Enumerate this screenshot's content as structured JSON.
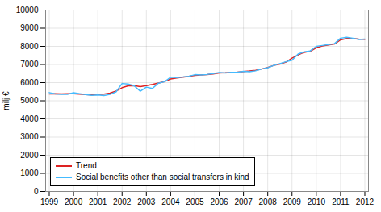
{
  "chart_data": {
    "type": "line",
    "title": "",
    "ylabel": "milj €",
    "xlim": [
      1998.85,
      2012.15
    ],
    "xticks": [
      1999,
      2000,
      2001,
      2002,
      2003,
      2004,
      2005,
      2006,
      2007,
      2008,
      2009,
      2010,
      2011,
      2012
    ],
    "ylim": [
      0,
      10000
    ],
    "yticks": [
      0,
      1000,
      2000,
      3000,
      4000,
      5000,
      6000,
      7000,
      8000,
      9000,
      10000
    ],
    "grid": true,
    "legend": "lower left",
    "x": [
      1999.0,
      1999.25,
      1999.5,
      1999.75,
      2000.0,
      2000.25,
      2000.5,
      2000.75,
      2001.0,
      2001.25,
      2001.5,
      2001.75,
      2002.0,
      2002.25,
      2002.5,
      2002.75,
      2003.0,
      2003.25,
      2003.5,
      2003.75,
      2004.0,
      2004.25,
      2004.5,
      2004.75,
      2005.0,
      2005.25,
      2005.5,
      2005.75,
      2006.0,
      2006.25,
      2006.5,
      2006.75,
      2007.0,
      2007.25,
      2007.5,
      2007.75,
      2008.0,
      2008.25,
      2008.5,
      2008.75,
      2009.0,
      2009.25,
      2009.5,
      2009.75,
      2010.0,
      2010.25,
      2010.5,
      2010.75,
      2011.0,
      2011.25,
      2011.5,
      2011.75,
      2012.0
    ],
    "series": [
      {
        "name": "Trend",
        "color": "#dd2222",
        "values": [
          5380,
          5390,
          5380,
          5390,
          5390,
          5370,
          5340,
          5320,
          5340,
          5370,
          5420,
          5530,
          5720,
          5820,
          5830,
          5780,
          5830,
          5900,
          5980,
          6060,
          6200,
          6250,
          6300,
          6340,
          6400,
          6420,
          6440,
          6480,
          6530,
          6540,
          6560,
          6580,
          6610,
          6640,
          6680,
          6750,
          6830,
          6950,
          7020,
          7130,
          7350,
          7530,
          7670,
          7730,
          7920,
          8020,
          8080,
          8130,
          8360,
          8430,
          8430,
          8400,
          8390
        ]
      },
      {
        "name": "Social benefits other than social transfers in kind",
        "color": "#44bbff",
        "values": [
          5450,
          5380,
          5350,
          5360,
          5440,
          5390,
          5340,
          5300,
          5320,
          5290,
          5350,
          5490,
          5950,
          5920,
          5820,
          5530,
          5750,
          5680,
          5970,
          6050,
          6300,
          6280,
          6310,
          6350,
          6440,
          6420,
          6450,
          6500,
          6560,
          6530,
          6570,
          6570,
          6620,
          6600,
          6650,
          6750,
          6820,
          6950,
          7050,
          7150,
          7230,
          7580,
          7700,
          7750,
          8000,
          8050,
          8100,
          8150,
          8450,
          8500,
          8450,
          8380,
          8400
        ]
      }
    ]
  }
}
